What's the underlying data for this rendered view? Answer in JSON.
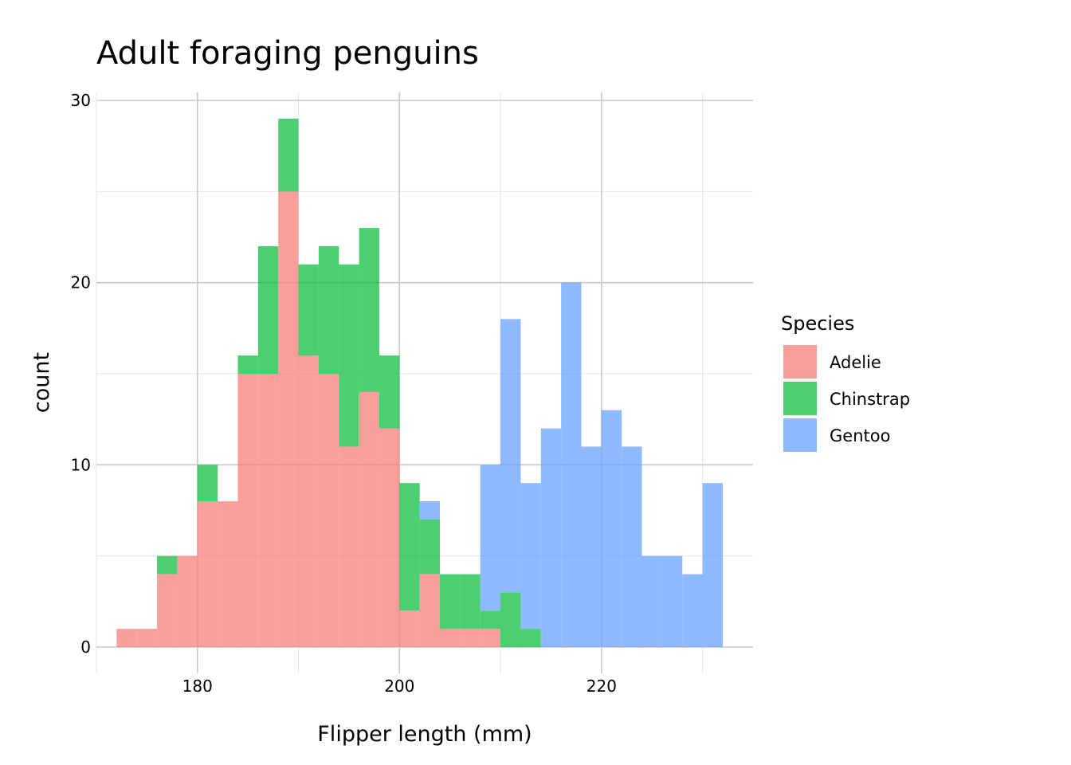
{
  "chart_data": {
    "type": "histogram",
    "stacked": true,
    "title": "Adult foraging penguins",
    "xlabel": "Flipper length (mm)",
    "ylabel": "count",
    "xlim": [
      170,
      235
    ],
    "ylim": [
      0,
      30
    ],
    "x_ticks": [
      180,
      200,
      220
    ],
    "x_tick_labels": [
      "180",
      "200",
      "220"
    ],
    "y_ticks": [
      0,
      10,
      20,
      30
    ],
    "y_tick_labels": [
      "0",
      "10",
      "20",
      "30"
    ],
    "bin_width": 2,
    "bin_starts": [
      172,
      174,
      176,
      178,
      180,
      182,
      184,
      186,
      188,
      190,
      192,
      194,
      196,
      198,
      200,
      202,
      204,
      206,
      208,
      210,
      212,
      214,
      216,
      218,
      220,
      222,
      224,
      226,
      228,
      230
    ],
    "grid": true,
    "opacity": 0.7,
    "legend": {
      "title": "Species",
      "position": "right"
    },
    "series": [
      {
        "name": "Adelie",
        "color": "#F8766D",
        "values": [
          1,
          1,
          4,
          5,
          8,
          8,
          15,
          15,
          25,
          16,
          15,
          11,
          14,
          12,
          2,
          4,
          1,
          1,
          1,
          0,
          0,
          0,
          0,
          0,
          0,
          0,
          0,
          0,
          0,
          0
        ]
      },
      {
        "name": "Chinstrap",
        "color": "#00BA38",
        "values": [
          0,
          0,
          1,
          0,
          2,
          0,
          1,
          7,
          4,
          5,
          7,
          10,
          9,
          4,
          7,
          3,
          3,
          3,
          1,
          3,
          1,
          0,
          0,
          0,
          0,
          0,
          0,
          0,
          0,
          0
        ]
      },
      {
        "name": "Gentoo",
        "color": "#619CFF",
        "values": [
          0,
          0,
          0,
          0,
          0,
          0,
          0,
          0,
          0,
          0,
          0,
          0,
          0,
          0,
          0,
          1,
          0,
          0,
          8,
          15,
          8,
          12,
          20,
          11,
          13,
          11,
          5,
          5,
          4,
          9
        ]
      }
    ]
  }
}
